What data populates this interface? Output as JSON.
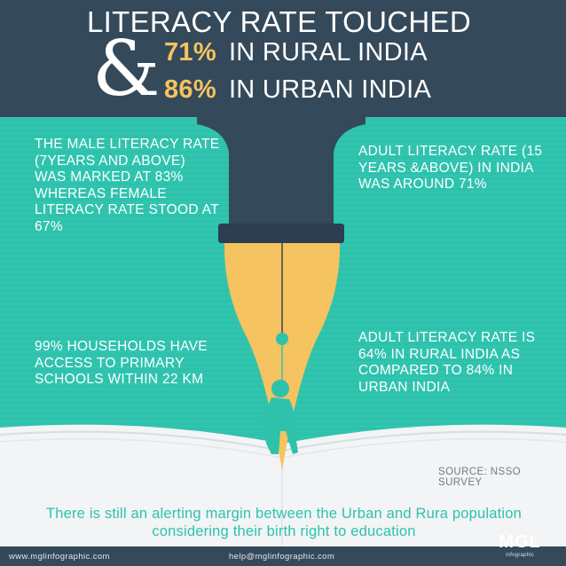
{
  "header": {
    "title": "LITERACY RATE TOUCHED",
    "ampersand": "&",
    "rural": {
      "value": "71%",
      "label": "IN RURAL INDIA"
    },
    "urban": {
      "value": "86%",
      "label": "IN URBAN INDIA"
    }
  },
  "facts": {
    "gender": "THE MALE LITERACY RATE (7YEARS AND ABOVE) WAS MARKED AT 83% WHEREAS FEMALE LITERACY RATE STOOD AT 67%",
    "adult": "ADULT LITERACY RATE (15 YEARS &ABOVE) IN INDIA WAS AROUND 71%",
    "schools": "99% HOUSEHOLDS HAVE ACCESS TO PRIMARY SCHOOLS WITHIN 22 KM",
    "rural_urban": "ADULT LITERACY RATE IS 64% IN RURAL INDIA AS COMPARED TO 84% IN URBAN INDIA"
  },
  "source": "SOURCE: NSSO SURVEY",
  "conclusion": "There is still an alerting margin between the Urban and Rura population considering their birth right to education",
  "footer": {
    "website": "www.mglinfographic.com",
    "email": "help@mglinfographic.com",
    "logo_text": "MGL",
    "logo_sub": "infographic"
  },
  "colors": {
    "header_bg": "#34495a",
    "teal": "#2ec2ad",
    "accent_yellow": "#f5c35f",
    "pen_body": "#2c3e50",
    "book_page": "#f2f4f5"
  },
  "illustration": {
    "icons": [
      "fountain-pen-icon",
      "open-book-icon",
      "reading-child-icon"
    ]
  }
}
